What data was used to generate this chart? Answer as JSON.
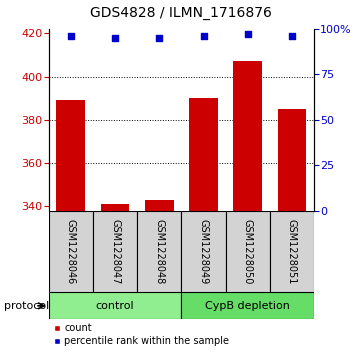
{
  "title": "GDS4828 / ILMN_1716876",
  "samples": [
    "GSM1228046",
    "GSM1228047",
    "GSM1228048",
    "GSM1228049",
    "GSM1228050",
    "GSM1228051"
  ],
  "bar_values": [
    389,
    341,
    343,
    390,
    407,
    385
  ],
  "percentile_values": [
    96,
    95,
    95,
    96,
    97,
    96
  ],
  "ylim_left": [
    338,
    422
  ],
  "ylim_right": [
    0,
    100
  ],
  "yticks_left": [
    340,
    360,
    380,
    400,
    420
  ],
  "yticks_right": [
    0,
    25,
    50,
    75,
    100
  ],
  "ytick_labels_right": [
    "0",
    "25",
    "50",
    "75",
    "100%"
  ],
  "bar_color": "#cc0000",
  "dot_color": "#0000cc",
  "bar_width": 0.65,
  "groups": [
    {
      "label": "control",
      "indices": [
        0,
        1,
        2
      ],
      "color": "#90ee90"
    },
    {
      "label": "CypB depletion",
      "indices": [
        3,
        4,
        5
      ],
      "color": "#66dd66"
    }
  ],
  "protocol_label": "protocol",
  "legend_items": [
    {
      "label": "count",
      "color": "#cc0000"
    },
    {
      "label": "percentile rank within the sample",
      "color": "#0000cc"
    }
  ],
  "sample_box_color": "#d3d3d3",
  "title_fontsize": 10,
  "tick_fontsize": 8,
  "sample_fontsize": 7,
  "group_fontsize": 8,
  "legend_fontsize": 7
}
